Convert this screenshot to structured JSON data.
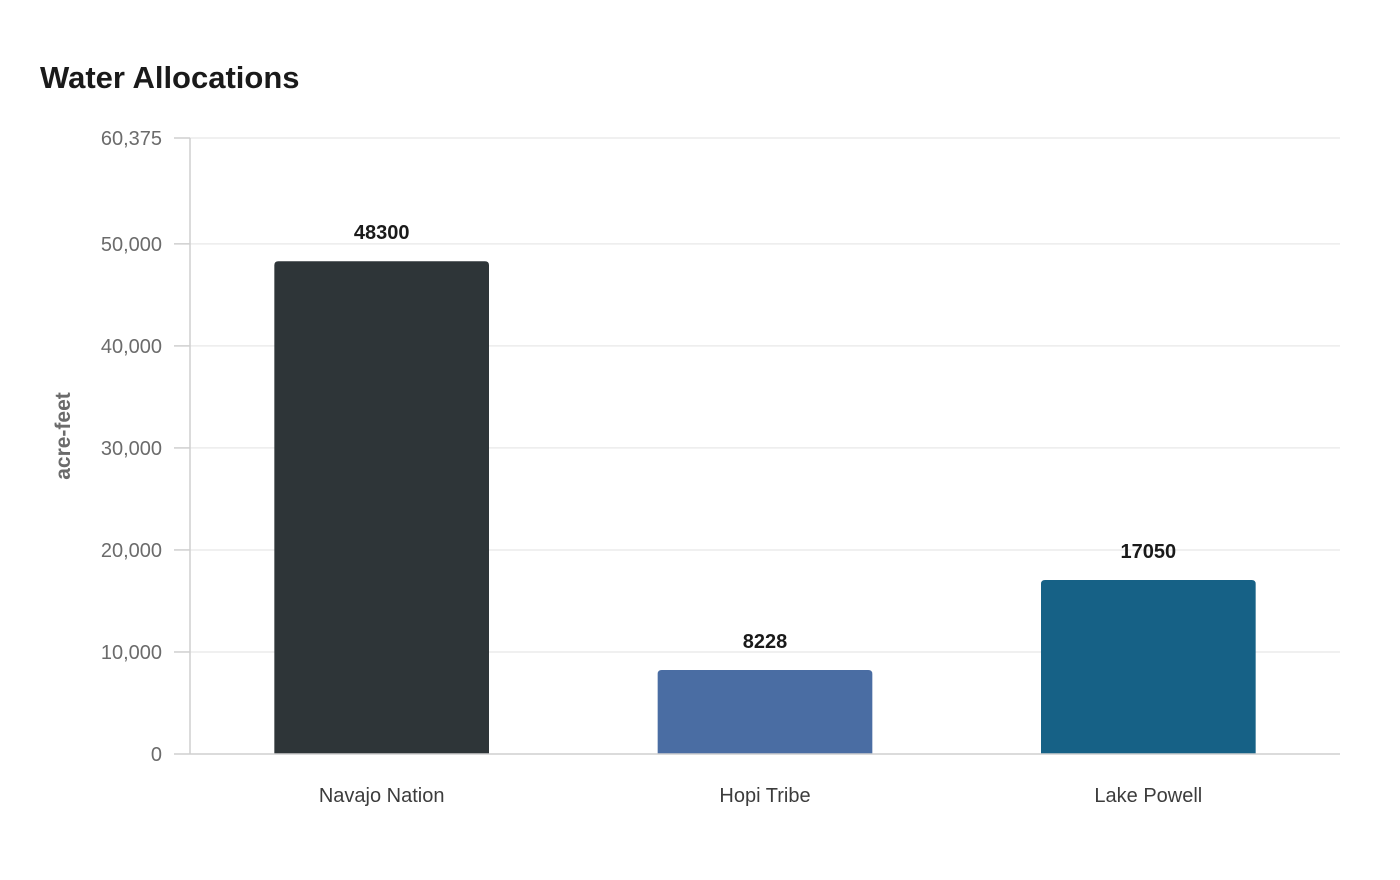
{
  "chart_data": {
    "type": "bar",
    "title": "Water Allocations",
    "xlabel": "",
    "ylabel": "acre-feet",
    "categories": [
      "Navajo Nation",
      "Hopi Tribe",
      "Lake Powell"
    ],
    "values": [
      48300,
      8228,
      17050
    ],
    "value_labels": [
      "48300",
      "8228",
      "17050"
    ],
    "colors": [
      "#2e3538",
      "#4a6da3",
      "#166186"
    ],
    "ylim": [
      0,
      60375
    ],
    "y_ticks": [
      0,
      10000,
      20000,
      30000,
      40000,
      50000,
      60375
    ],
    "y_tick_labels": [
      "0",
      "10,000",
      "20,000",
      "30,000",
      "40,000",
      "50,000",
      "60,375"
    ],
    "grid": true,
    "legend": "none"
  }
}
